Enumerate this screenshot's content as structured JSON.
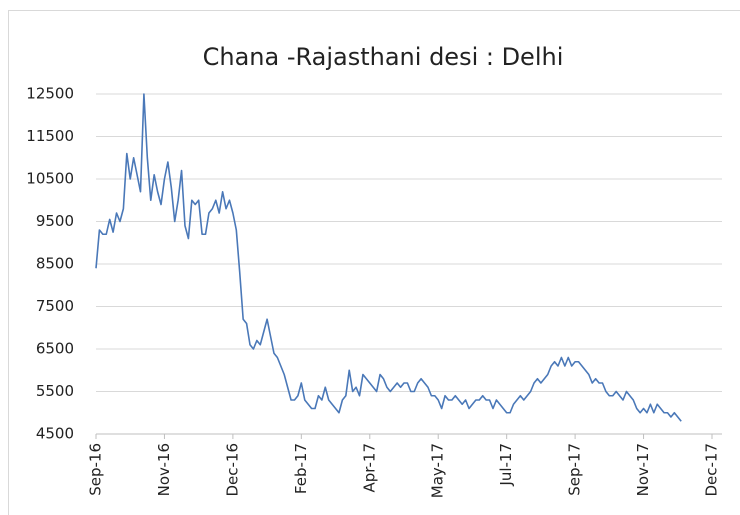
{
  "chart_data": {
    "type": "line",
    "title": "Chana -Rajasthani desi : Delhi",
    "color": "#4a78b8",
    "grid": true,
    "ylim": [
      4500,
      12500
    ],
    "yticks": [
      4500,
      5500,
      6500,
      7500,
      8500,
      9500,
      10500,
      11500,
      12500
    ],
    "xlim": [
      0,
      180
    ],
    "xticks": [
      {
        "value": 0,
        "label": "Sep-16"
      },
      {
        "value": 20,
        "label": "Nov-16"
      },
      {
        "value": 40,
        "label": "Dec-16"
      },
      {
        "value": 60,
        "label": "Feb-17"
      },
      {
        "value": 80,
        "label": "Apr-17"
      },
      {
        "value": 100,
        "label": "May-17"
      },
      {
        "value": 120,
        "label": "Jul-17"
      },
      {
        "value": 140,
        "label": "Sep-17"
      },
      {
        "value": 160,
        "label": "Nov-17"
      },
      {
        "value": 180,
        "label": "Dec-17"
      }
    ],
    "values": [
      8400,
      9300,
      9200,
      9200,
      9550,
      9250,
      9700,
      9500,
      9800,
      11100,
      10500,
      11000,
      10600,
      10200,
      12500,
      11000,
      10000,
      10600,
      10200,
      9900,
      10500,
      10900,
      10300,
      9500,
      10000,
      10700,
      9400,
      9100,
      10000,
      9900,
      10000,
      9200,
      9200,
      9700,
      9800,
      10000,
      9700,
      10200,
      9800,
      10000,
      9700,
      9300,
      8300,
      7200,
      7100,
      6600,
      6500,
      6700,
      6600,
      6900,
      7200,
      6800,
      6400,
      6300,
      6100,
      5900,
      5600,
      5300,
      5300,
      5400,
      5700,
      5300,
      5200,
      5100,
      5100,
      5400,
      5300,
      5600,
      5300,
      5200,
      5100,
      5000,
      5300,
      5400,
      6000,
      5500,
      5600,
      5400,
      5900,
      5800,
      5700,
      5600,
      5500,
      5900,
      5800,
      5600,
      5500,
      5600,
      5700,
      5600,
      5700,
      5700,
      5500,
      5500,
      5700,
      5800,
      5700,
      5600,
      5400,
      5400,
      5300,
      5100,
      5400,
      5300,
      5300,
      5400,
      5300,
      5200,
      5300,
      5100,
      5200,
      5300,
      5300,
      5400,
      5300,
      5300,
      5100,
      5300,
      5200,
      5100,
      5000,
      5000,
      5200,
      5300,
      5400,
      5300,
      5400,
      5500,
      5700,
      5800,
      5700,
      5800,
      5900,
      6100,
      6200,
      6100,
      6300,
      6100,
      6300,
      6100,
      6200,
      6200,
      6100,
      6000,
      5900,
      5700,
      5800,
      5700,
      5700,
      5500,
      5400,
      5400,
      5500,
      5400,
      5300,
      5500,
      5400,
      5300,
      5100,
      5000,
      5100,
      5000,
      5200,
      5000,
      5200,
      5100,
      5000,
      5000,
      4900,
      5000,
      4900,
      4800
    ]
  }
}
